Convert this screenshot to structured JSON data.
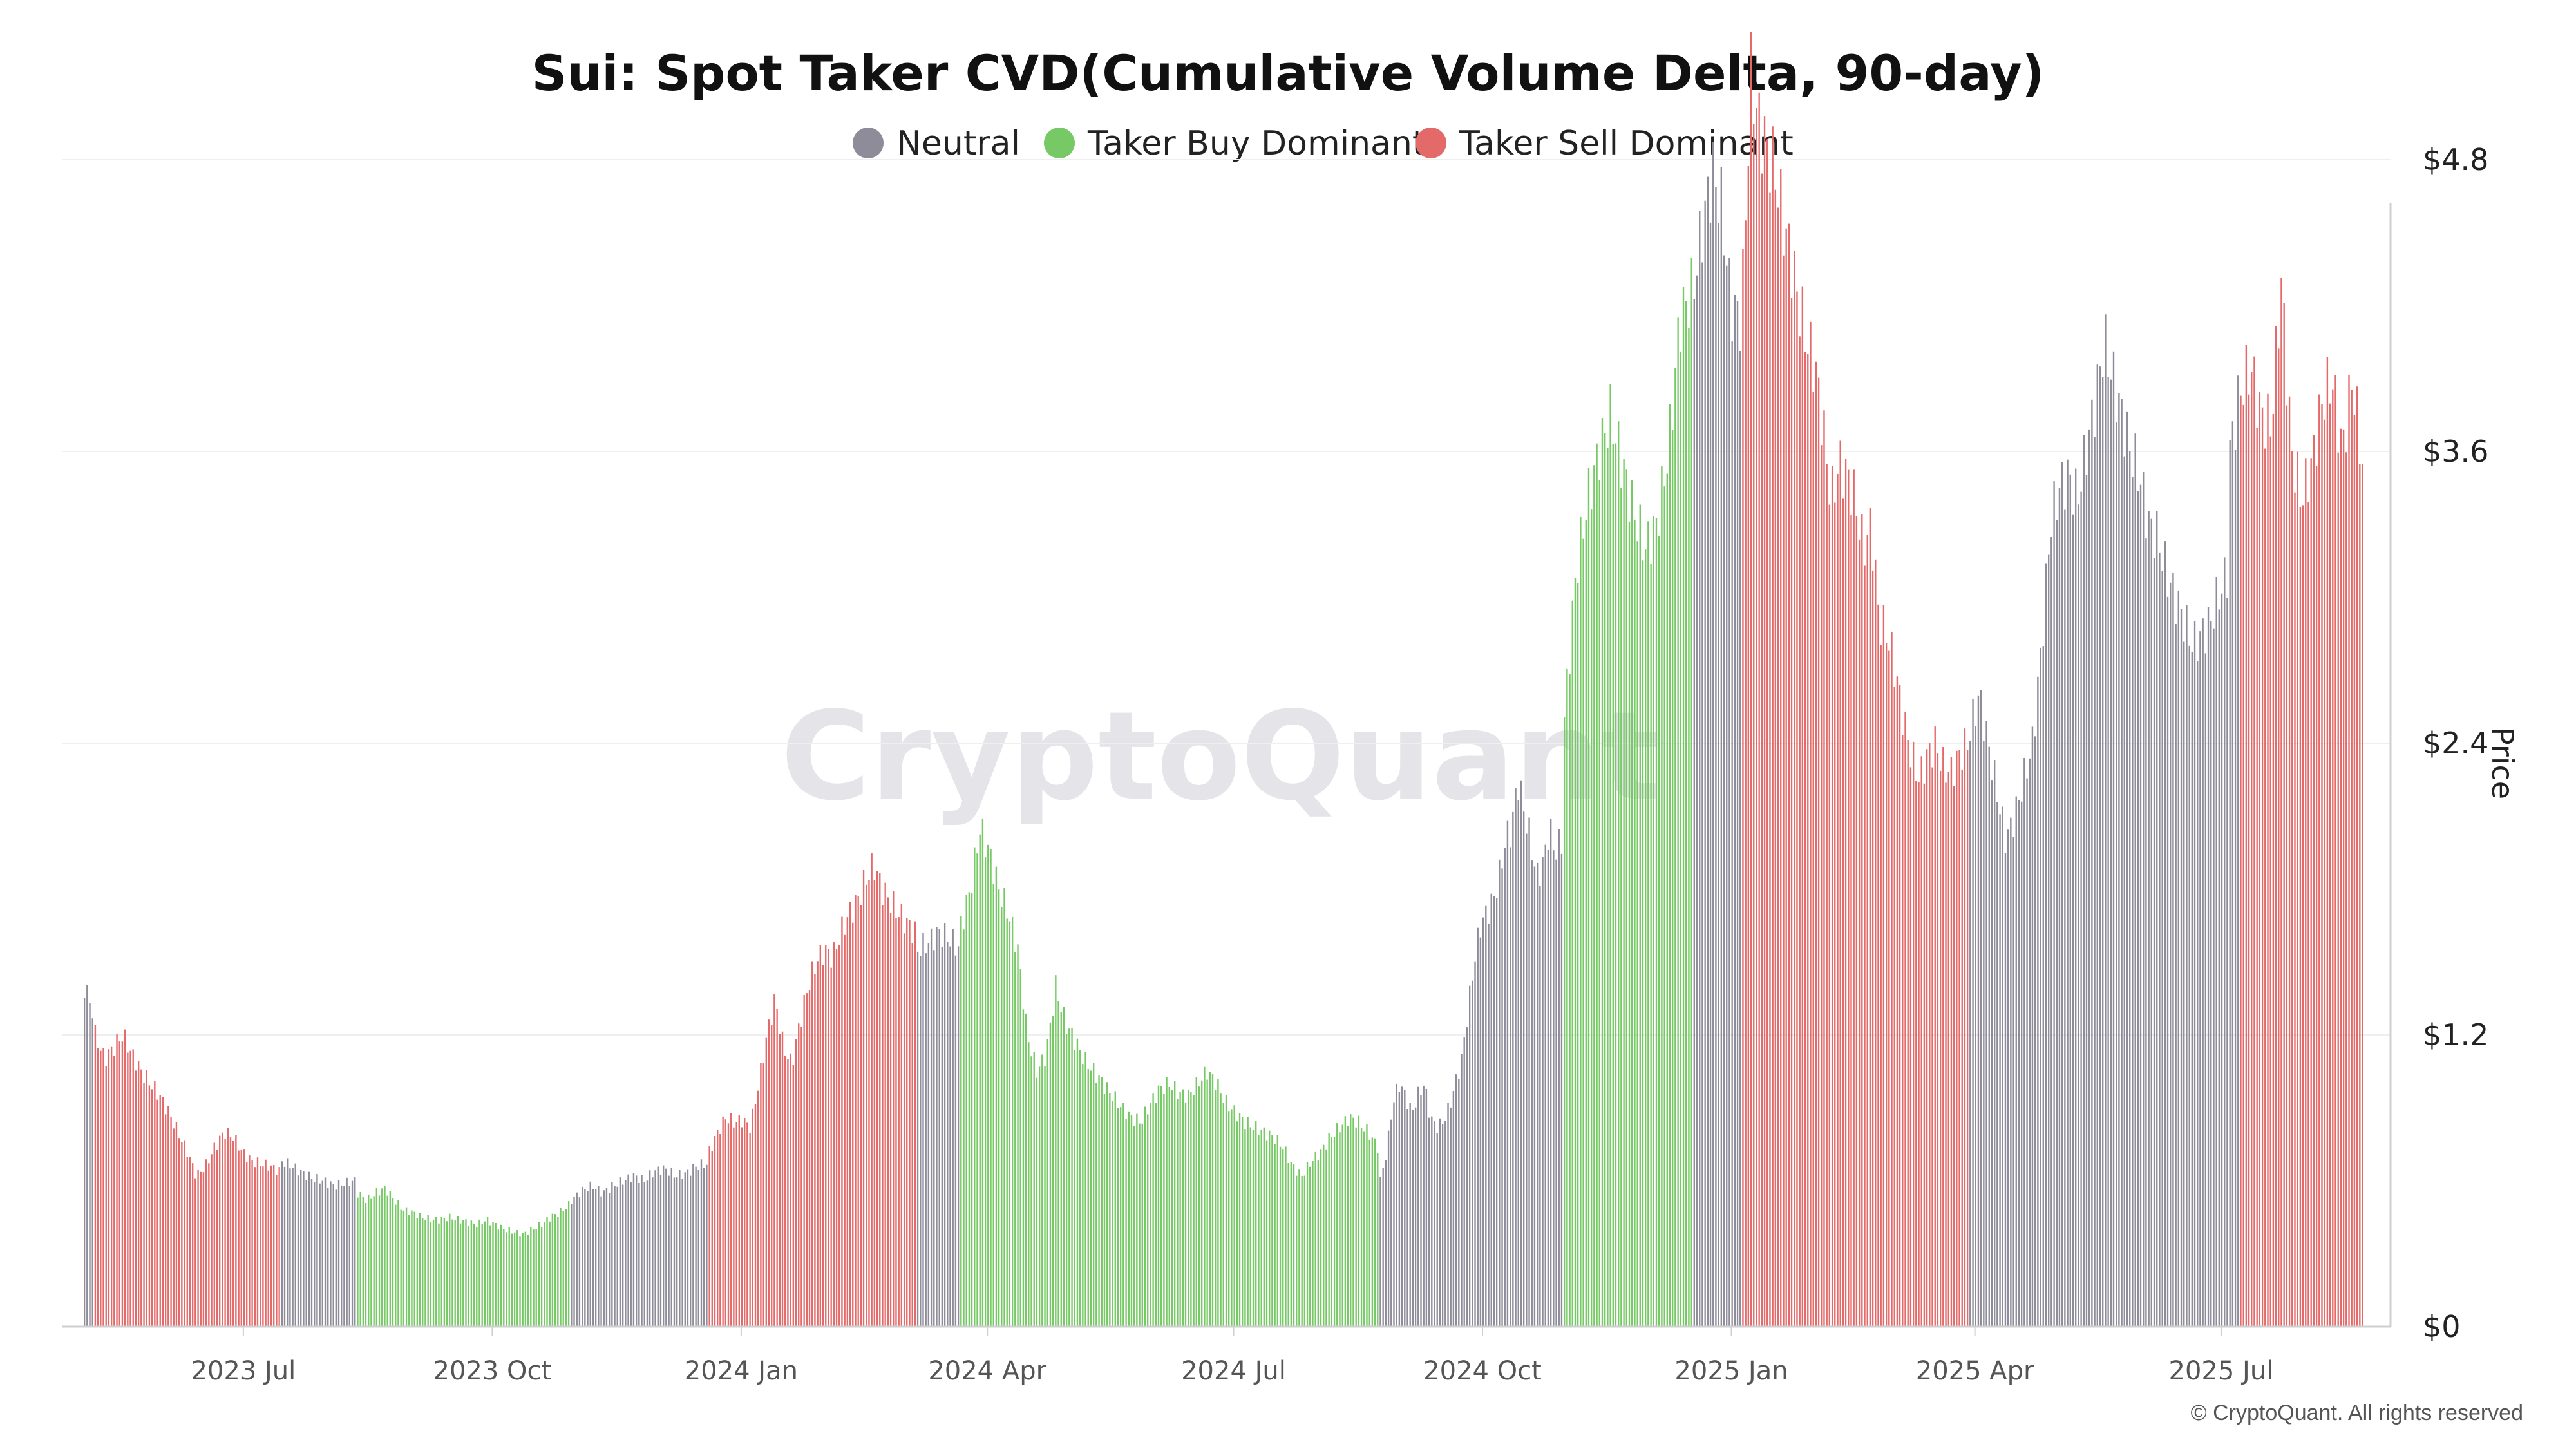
{
  "chart_data": {
    "type": "bar",
    "title": "Sui: Spot Taker CVD(Cumulative Volume Delta, 90-day)",
    "legend": {
      "placement": "top-center",
      "items": [
        {
          "key": "neutral",
          "label": "Neutral",
          "color": "#8e8c99"
        },
        {
          "key": "buy",
          "label": "Taker Buy Dominant",
          "color": "#76c964"
        },
        {
          "key": "sell",
          "label": "Taker Sell Dominant",
          "color": "#e46a6a"
        }
      ]
    },
    "colors": {
      "neutral": "#8e8c99",
      "buy": "#76c964",
      "sell": "#e46a6a"
    },
    "ylabel": "Price",
    "ylim": [
      0,
      5.4
    ],
    "yticks": [
      0,
      1.2,
      2.4,
      3.6,
      4.8
    ],
    "ytick_labels": [
      "$0",
      "$1.2",
      "$2.4",
      "$3.6",
      "$4.8"
    ],
    "xlim": [
      "2023-05-03",
      "2025-08-25"
    ],
    "xticks": [
      {
        "date": "2023-07-01",
        "label": "2023 Jul"
      },
      {
        "date": "2023-10-01",
        "label": "2023 Oct"
      },
      {
        "date": "2024-01-01",
        "label": "2024 Jan"
      },
      {
        "date": "2024-04-01",
        "label": "2024 Apr"
      },
      {
        "date": "2024-07-01",
        "label": "2024 Jul"
      },
      {
        "date": "2024-10-01",
        "label": "2024 Oct"
      },
      {
        "date": "2025-01-01",
        "label": "2025 Jan"
      },
      {
        "date": "2025-04-01",
        "label": "2025 Apr"
      },
      {
        "date": "2025-07-01",
        "label": "2025 Jul"
      }
    ],
    "grid": true,
    "series": [
      {
        "start": "2023-05-03",
        "end": "2023-05-07",
        "state": "neutral",
        "values": [
          1.4,
          1.3
        ]
      },
      {
        "start": "2023-05-07",
        "end": "2023-07-15",
        "state": "sell",
        "values": [
          1.2,
          1.1,
          1.15,
          1.2,
          1.12,
          1.05,
          1.0,
          0.95,
          0.88,
          0.8,
          0.72,
          0.62,
          0.66,
          0.74,
          0.8,
          0.78,
          0.72,
          0.68,
          0.67,
          0.66,
          0.64
        ]
      },
      {
        "start": "2023-07-15",
        "end": "2023-08-12",
        "state": "neutral",
        "values": [
          0.68,
          0.66,
          0.63,
          0.61,
          0.6,
          0.58,
          0.59,
          0.6
        ]
      },
      {
        "start": "2023-08-12",
        "end": "2023-10-30",
        "state": "buy",
        "values": [
          0.55,
          0.52,
          0.55,
          0.57,
          0.52,
          0.48,
          0.47,
          0.45,
          0.44,
          0.44,
          0.45,
          0.44,
          0.43,
          0.42,
          0.44,
          0.42,
          0.4,
          0.39,
          0.38,
          0.4,
          0.42,
          0.45,
          0.47,
          0.5
        ]
      },
      {
        "start": "2023-10-30",
        "end": "2023-12-20",
        "state": "neutral",
        "values": [
          0.52,
          0.56,
          0.58,
          0.55,
          0.58,
          0.6,
          0.62,
          0.6,
          0.64,
          0.65,
          0.62,
          0.63,
          0.66,
          0.67
        ]
      },
      {
        "start": "2023-12-20",
        "end": "2024-03-06",
        "state": "sell",
        "values": [
          0.72,
          0.8,
          0.86,
          0.84,
          0.85,
          0.82,
          1.0,
          1.2,
          1.35,
          1.15,
          1.08,
          1.25,
          1.4,
          1.5,
          1.55,
          1.52,
          1.62,
          1.7,
          1.75,
          1.84,
          1.9,
          1.8,
          1.75,
          1.7,
          1.66,
          1.62
        ]
      },
      {
        "start": "2024-03-06",
        "end": "2024-03-22",
        "state": "neutral",
        "values": [
          1.55,
          1.58,
          1.62,
          1.6,
          1.56
        ]
      },
      {
        "start": "2024-03-22",
        "end": "2024-08-24",
        "state": "buy",
        "values": [
          1.65,
          1.8,
          2.05,
          1.95,
          1.8,
          1.7,
          1.55,
          1.2,
          1.05,
          1.12,
          1.4,
          1.25,
          1.18,
          1.1,
          1.05,
          1.0,
          0.95,
          0.9,
          0.86,
          0.84,
          0.92,
          0.98,
          1.0,
          0.96,
          0.95,
          1.0,
          1.05,
          1.0,
          0.92,
          0.88,
          0.84,
          0.82,
          0.8,
          0.78,
          0.74,
          0.66,
          0.62,
          0.68,
          0.72,
          0.78,
          0.82,
          0.86,
          0.84,
          0.8,
          0.74
        ]
      },
      {
        "start": "2024-08-24",
        "end": "2024-10-31",
        "state": "neutral",
        "values": [
          0.6,
          0.72,
          0.92,
          1.0,
          0.95,
          0.88,
          0.95,
          1.0,
          0.86,
          0.82,
          0.84,
          0.9,
          1.0,
          1.1,
          1.3,
          1.5,
          1.65,
          1.7,
          1.75,
          1.85,
          2.0,
          2.05,
          2.25,
          2.12,
          2.0,
          1.85,
          1.9,
          2.05,
          1.95,
          2.0
        ]
      },
      {
        "start": "2024-10-31",
        "end": "2024-12-18",
        "state": "buy",
        "values": [
          2.5,
          3.1,
          3.4,
          3.6,
          3.75,
          3.55,
          3.35,
          3.2,
          3.3,
          3.6,
          4.15,
          4.25
        ]
      },
      {
        "start": "2024-12-18",
        "end": "2025-01-05",
        "state": "neutral",
        "values": [
          4.3,
          4.55,
          4.75,
          4.6,
          4.2,
          4.15
        ]
      },
      {
        "start": "2025-01-05",
        "end": "2025-03-30",
        "state": "sell",
        "values": [
          4.3,
          5.15,
          4.95,
          4.85,
          4.75,
          4.55,
          4.4,
          4.2,
          4.05,
          3.95,
          3.7,
          3.4,
          3.55,
          3.5,
          3.4,
          3.2,
          3.3,
          2.9,
          2.85,
          2.7,
          2.5,
          2.35,
          2.25,
          2.35,
          2.4,
          2.3,
          2.28,
          2.35,
          2.4
        ]
      },
      {
        "start": "2025-03-30",
        "end": "2025-06-28",
        "state": "neutral",
        "values": [
          2.45,
          2.6,
          2.4,
          2.2,
          2.0,
          2.1,
          2.25,
          2.4,
          2.8,
          3.3,
          3.45,
          3.5,
          3.4,
          3.6,
          3.8,
          4.05,
          3.9,
          3.75,
          3.6,
          3.5,
          3.3,
          3.25,
          3.1,
          3.0,
          2.9,
          2.8,
          2.85,
          2.9
        ]
      },
      {
        "start": "2025-06-28",
        "end": "2025-07-04",
        "state": "neutral",
        "values": [
          2.95,
          3.1
        ]
      },
      {
        "start": "2025-07-04",
        "end": "2025-07-08",
        "state": "neutral",
        "values": [
          3.6,
          3.8
        ]
      },
      {
        "start": "2025-07-08",
        "end": "2025-08-23",
        "state": "sell",
        "values": [
          3.85,
          3.95,
          3.75,
          3.7,
          4.3,
          3.6,
          3.4,
          3.55,
          3.8,
          3.9,
          3.6,
          3.9,
          3.55
        ]
      }
    ]
  },
  "watermark": "CryptoQuant",
  "credit": "© CryptoQuant. All rights reserved"
}
